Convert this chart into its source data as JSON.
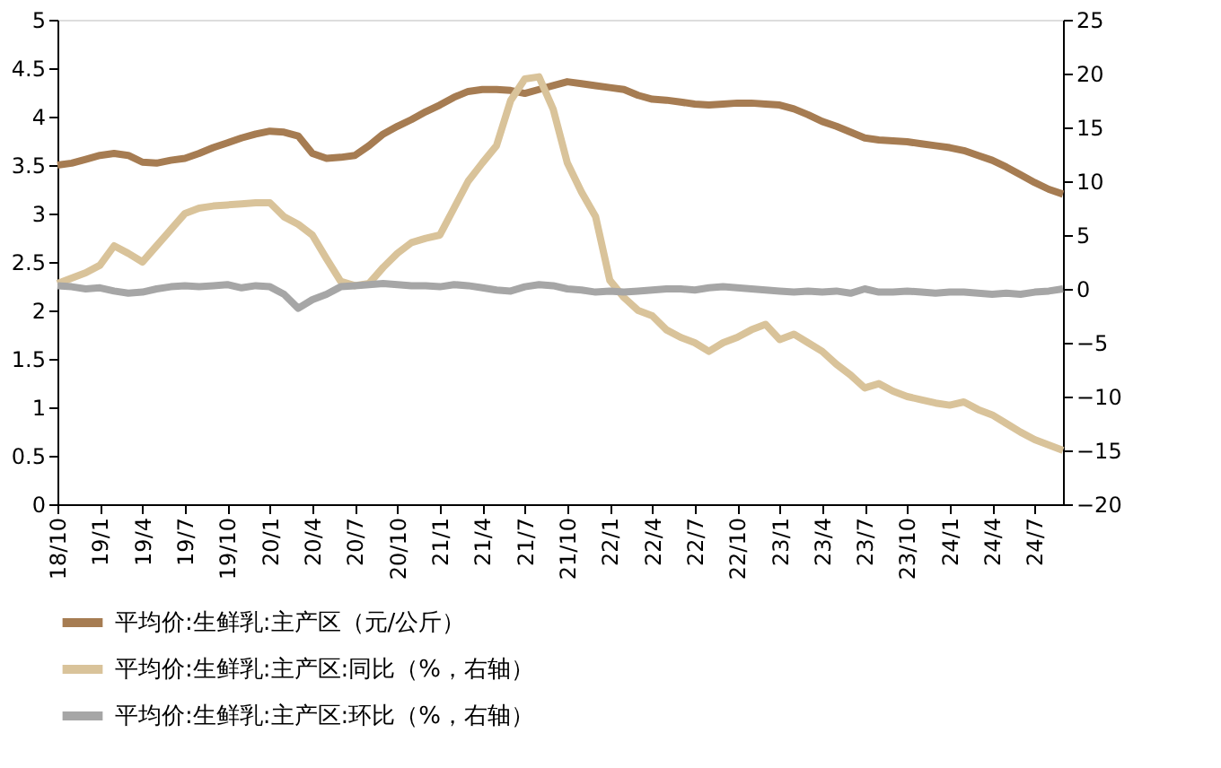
{
  "chart_data": {
    "type": "line",
    "categories": [
      "18/10",
      null,
      null,
      "19/1",
      null,
      null,
      "19/4",
      null,
      null,
      "19/7",
      null,
      null,
      "19/10",
      null,
      null,
      "20/1",
      null,
      null,
      "20/4",
      null,
      null,
      "20/7",
      null,
      null,
      "20/10",
      null,
      null,
      "21/1",
      null,
      null,
      "21/4",
      null,
      null,
      "21/7",
      null,
      null,
      "21/10",
      null,
      null,
      "22/1",
      null,
      null,
      "22/4",
      null,
      null,
      "22/7",
      null,
      null,
      "22/10",
      null,
      null,
      "23/1",
      null,
      null,
      "23/4",
      null,
      null,
      "23/7",
      null,
      null,
      "23/10",
      null,
      null,
      "24/1",
      null,
      null,
      "24/4",
      null,
      null,
      "24/7",
      null,
      null
    ],
    "series": [
      {
        "name": "平均价:生鲜乳:主产区（元/公斤）",
        "color": "#a67c52",
        "values": [
          3.5,
          3.52,
          3.56,
          3.6,
          3.62,
          3.6,
          3.53,
          3.52,
          3.55,
          3.57,
          3.62,
          3.68,
          3.73,
          3.78,
          3.82,
          3.85,
          3.84,
          3.8,
          3.62,
          3.57,
          3.58,
          3.6,
          3.7,
          3.82,
          3.9,
          3.97,
          4.05,
          4.12,
          4.2,
          4.26,
          4.28,
          4.28,
          4.27,
          4.24,
          4.28,
          4.32,
          4.36,
          4.34,
          4.32,
          4.3,
          4.28,
          4.22,
          4.18,
          4.17,
          4.15,
          4.13,
          4.12,
          4.13,
          4.14,
          4.14,
          4.13,
          4.12,
          4.08,
          4.02,
          3.95,
          3.9,
          3.84,
          3.78,
          3.76,
          3.75,
          3.74,
          3.72,
          3.7,
          3.68,
          3.65,
          3.6,
          3.55,
          3.48,
          3.4,
          3.32,
          3.25,
          3.2
        ]
      },
      {
        "name": "平均价:生鲜乳:主产区:同比（%，右轴）",
        "color": "#d9c39a",
        "axis": "y2",
        "values": [
          0.5,
          1.0,
          1.5,
          2.2,
          4.0,
          3.3,
          2.5,
          4.0,
          5.5,
          7.0,
          7.5,
          7.7,
          7.8,
          7.9,
          8.0,
          8.0,
          6.7,
          6.0,
          5.0,
          2.8,
          0.7,
          0.3,
          0.5,
          2.0,
          3.3,
          4.3,
          4.7,
          5.0,
          7.5,
          10.0,
          11.7,
          13.3,
          17.5,
          19.5,
          19.7,
          16.7,
          11.7,
          9.0,
          6.7,
          0.8,
          -0.8,
          -2.0,
          -2.5,
          -3.8,
          -4.5,
          -5.0,
          -5.8,
          -5.0,
          -4.5,
          -3.8,
          -3.3,
          -4.7,
          -4.2,
          -5.0,
          -5.8,
          -7.0,
          -8.0,
          -9.2,
          -8.8,
          -9.5,
          -10.0,
          -10.3,
          -10.6,
          -10.8,
          -10.5,
          -11.2,
          -11.7,
          -12.5,
          -13.3,
          -14.0,
          -14.5,
          -15.0
        ]
      },
      {
        "name": "平均价:生鲜乳:主产区:环比（%，右轴）",
        "color": "#a6a6a6",
        "axis": "y2",
        "values": [
          0.3,
          0.2,
          0.0,
          0.1,
          -0.2,
          -0.4,
          -0.3,
          0.0,
          0.2,
          0.3,
          0.2,
          0.3,
          0.4,
          0.1,
          0.3,
          0.2,
          -0.5,
          -1.8,
          -1.0,
          -0.5,
          0.2,
          0.3,
          0.4,
          0.5,
          0.4,
          0.3,
          0.3,
          0.2,
          0.4,
          0.3,
          0.1,
          -0.1,
          -0.2,
          0.2,
          0.4,
          0.3,
          0.0,
          -0.1,
          -0.3,
          -0.2,
          -0.3,
          -0.2,
          -0.1,
          0.0,
          0.0,
          -0.1,
          0.1,
          0.2,
          0.1,
          0.0,
          -0.1,
          -0.2,
          -0.3,
          -0.2,
          -0.3,
          -0.2,
          -0.4,
          0.0,
          -0.3,
          -0.3,
          -0.2,
          -0.3,
          -0.4,
          -0.3,
          -0.3,
          -0.4,
          -0.5,
          -0.4,
          -0.5,
          -0.3,
          -0.2,
          0.0
        ]
      }
    ],
    "ylim": [
      0,
      5
    ],
    "yticks": [
      0,
      0.5,
      1,
      1.5,
      2,
      2.5,
      3,
      3.5,
      4,
      4.5,
      5
    ],
    "y2lim": [
      -20,
      25
    ],
    "y2ticks": [
      -20,
      -15,
      -10,
      -5,
      0,
      5,
      10,
      15,
      20,
      25
    ],
    "grid": false,
    "legend": "bottom",
    "marker": "none",
    "line_style": "solid"
  }
}
